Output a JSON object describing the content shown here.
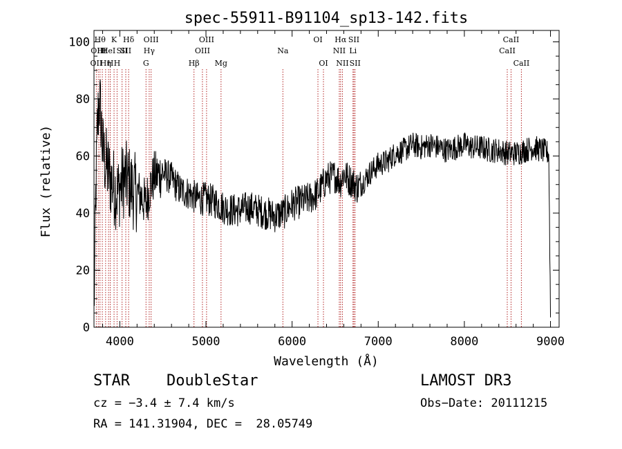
{
  "chart_data": {
    "type": "line",
    "title": "spec-55911-B91104_sp13-142.fits",
    "xlabel": "Wavelength (Å)",
    "ylabel": "Flux (relative)",
    "xlim": [
      3700,
      9100
    ],
    "ylim": [
      0,
      104
    ],
    "xticks": [
      4000,
      5000,
      6000,
      7000,
      8000,
      9000
    ],
    "yticks": [
      0,
      20,
      40,
      60,
      80,
      100
    ],
    "grid": false,
    "line_color": "#000000",
    "marker_color": "#b22222",
    "series": [
      {
        "x": [
          3700,
          3720,
          3740,
          3760,
          3780,
          3800,
          3830,
          3860,
          3890,
          3920,
          3950,
          3980,
          4000,
          4050,
          4100,
          4150,
          4200,
          4250,
          4300,
          4350,
          4400,
          4500,
          4600,
          4700,
          4800,
          4900,
          5000,
          5100,
          5200,
          5300,
          5400,
          5500,
          5600,
          5700,
          5800,
          5900,
          6000,
          6100,
          6200,
          6300,
          6400,
          6500,
          6560,
          6600,
          6650,
          6700,
          6750,
          6800,
          6900,
          7000,
          7100,
          7200,
          7300,
          7400,
          7500,
          7600,
          7700,
          7800,
          7900,
          8000,
          8100,
          8200,
          8300,
          8400,
          8500,
          8600,
          8700,
          8800,
          8900,
          8980,
          9000
        ],
        "y": [
          5,
          45,
          70,
          80,
          74,
          62,
          58,
          55,
          52,
          50,
          48,
          47,
          49,
          52,
          51,
          48,
          47,
          46,
          43,
          49,
          53,
          54,
          52,
          48,
          47,
          45,
          45,
          44,
          42,
          41,
          41,
          42,
          41,
          40,
          39,
          40,
          43,
          44,
          45,
          47,
          52,
          53,
          51,
          54,
          52,
          51,
          49,
          50,
          54,
          57,
          58,
          61,
          62,
          64,
          63,
          64,
          63,
          62,
          63,
          64,
          63,
          63,
          62,
          62,
          61,
          61,
          62,
          63,
          62,
          61,
          5
        ]
      }
    ],
    "lines": [
      {
        "w": 3727,
        "label": "OII",
        "row": 2
      },
      {
        "w": 3750,
        "label": "OIII",
        "row": 1
      },
      {
        "w": 3770,
        "label": "Hθ",
        "row": 0
      },
      {
        "w": 3797,
        "label": "Hε",
        "row": 1
      },
      {
        "w": 3835,
        "label": "Hη",
        "row": 2
      },
      {
        "w": 3869,
        "label": "HeI",
        "row": 1
      },
      {
        "w": 3889,
        "label": "H",
        "row": 2
      },
      {
        "w": 3933,
        "label": "K",
        "row": 0
      },
      {
        "w": 3968,
        "label": "H",
        "row": 2
      },
      {
        "w": 4026,
        "label": "SII",
        "row": 1
      },
      {
        "w": 4069,
        "label": "SII",
        "row": 1
      },
      {
        "w": 4102,
        "label": "Hδ",
        "row": 0
      },
      {
        "w": 4304,
        "label": "G",
        "row": 2
      },
      {
        "w": 4341,
        "label": "Hγ",
        "row": 1
      },
      {
        "w": 4363,
        "label": "OIII",
        "row": 0
      },
      {
        "w": 4861,
        "label": "Hβ",
        "row": 2
      },
      {
        "w": 4959,
        "label": "OIII",
        "row": 1
      },
      {
        "w": 5007,
        "label": "OIII",
        "row": 0
      },
      {
        "w": 5175,
        "label": "Mg",
        "row": 2
      },
      {
        "w": 5893,
        "label": "Na",
        "row": 1
      },
      {
        "w": 6300,
        "label": "OI",
        "row": 0
      },
      {
        "w": 6364,
        "label": "OI",
        "row": 2
      },
      {
        "w": 6548,
        "label": "NII",
        "row": 1
      },
      {
        "w": 6563,
        "label": "Hα",
        "row": 0
      },
      {
        "w": 6584,
        "label": "NII",
        "row": 2
      },
      {
        "w": 6707,
        "label": "Li",
        "row": 1
      },
      {
        "w": 6717,
        "label": "SII",
        "row": 0
      },
      {
        "w": 6731,
        "label": "SII",
        "row": 2
      },
      {
        "w": 8498,
        "label": "CaII",
        "row": 1
      },
      {
        "w": 8542,
        "label": "CaII",
        "row": 0
      },
      {
        "w": 8662,
        "label": "CaII",
        "row": 2
      }
    ]
  },
  "info": {
    "class": "STAR",
    "subclass": "DoubleStar",
    "survey": "LAMOST DR3",
    "cz": "cz = −3.4 ± 7.4 km/s",
    "obs_date": "Obs−Date: 20111215",
    "radec": "RA = 141.31904, DEC =  28.05749"
  }
}
